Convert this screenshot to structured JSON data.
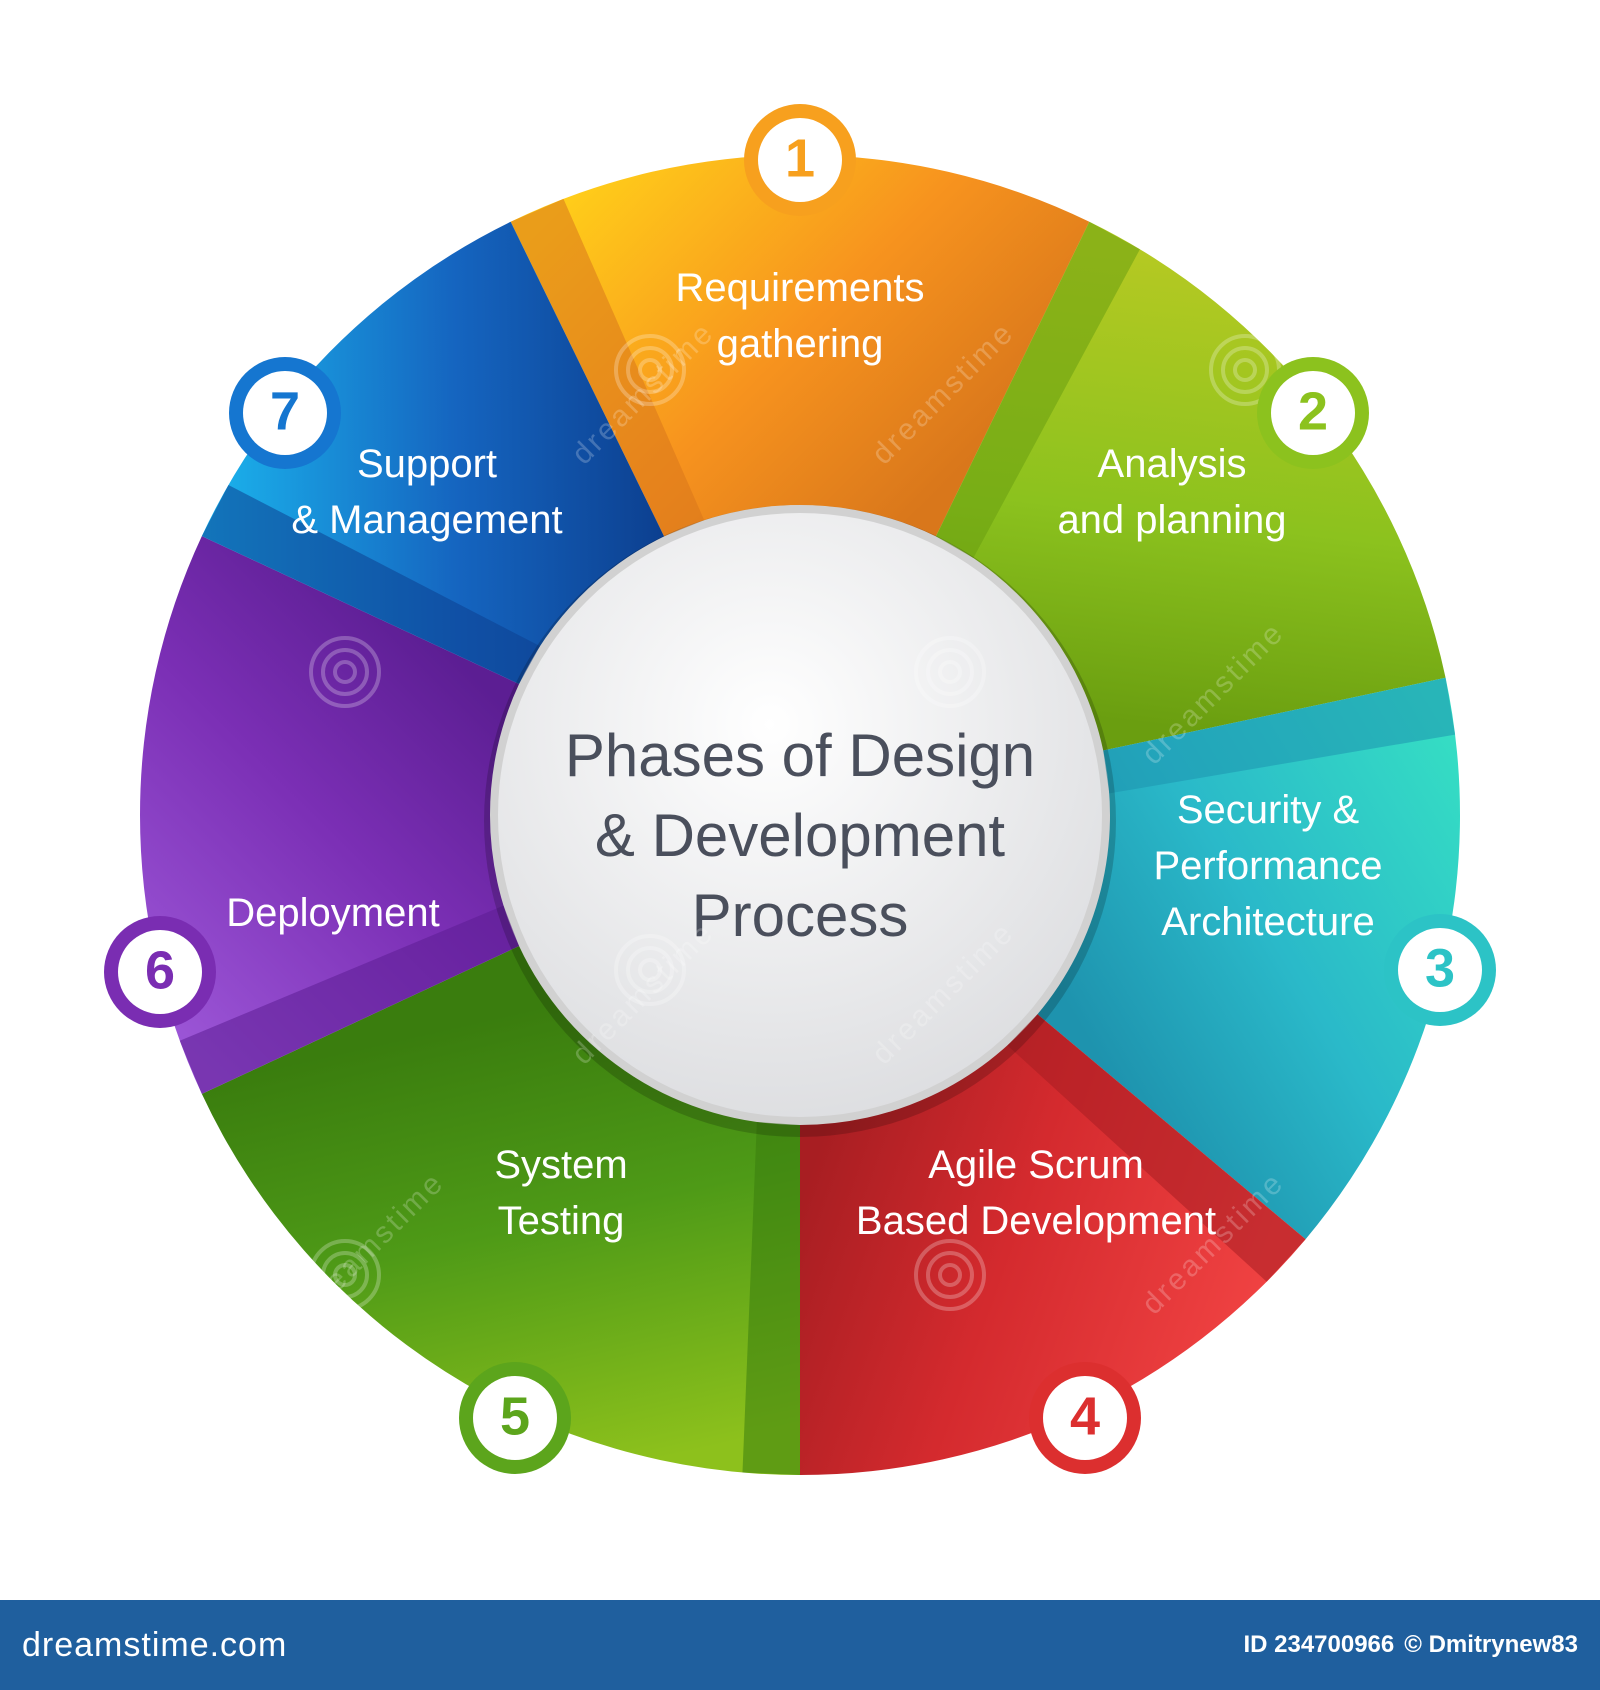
{
  "diagram": {
    "center_title": [
      "Phases of Design",
      "& Development",
      "Process"
    ],
    "phases": [
      {
        "number": "1",
        "label": [
          "Requirements",
          "gathering"
        ],
        "color": "#F7931E",
        "color_dark": "#D9771B",
        "color_light": "#FFCC1A",
        "badge_color": "#F7A01E"
      },
      {
        "number": "2",
        "label": [
          "Analysis",
          "and planning"
        ],
        "color": "#8CC21E",
        "color_dark": "#6A9E10",
        "color_light": "#B4C922",
        "badge_color": "#8CC21E"
      },
      {
        "number": "3",
        "label": [
          "Security &",
          "Performance",
          "Architecture"
        ],
        "color": "#2AB9C9",
        "color_dark": "#1E93AE",
        "color_light": "#35DDC4",
        "badge_color": "#2CC3C6"
      },
      {
        "number": "4",
        "label": [
          "Agile Scrum",
          "Based Development"
        ],
        "color": "#D42A2E",
        "color_dark": "#A81E22",
        "color_light": "#F04242",
        "badge_color": "#DC2F2F"
      },
      {
        "number": "5",
        "label": [
          "System",
          "Testing"
        ],
        "color": "#4E9A17",
        "color_dark": "#3A7D0E",
        "color_light": "#8DC11C",
        "badge_color": "#5CA51C"
      },
      {
        "number": "6",
        "label": [
          "Deployment"
        ],
        "color": "#7B2FB5",
        "color_dark": "#5C1E93",
        "color_light": "#9B55D6",
        "badge_color": "#7A2DB2"
      },
      {
        "number": "7",
        "label": [
          "Support",
          "& Management"
        ],
        "color": "#1565C0",
        "color_dark": "#0C3F8F",
        "color_light": "#1BB6EE",
        "badge_color": "#1576D0"
      }
    ],
    "center_fill": "#E9EAEC",
    "watermark_text": "dreamstime"
  },
  "footer": {
    "brand": "dreamstime.com",
    "id_text": "ID 234700966",
    "credit": "© Dmitrynew83",
    "background": "#1F5F9E"
  }
}
